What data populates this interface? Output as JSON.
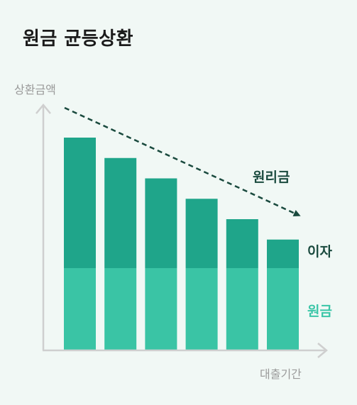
{
  "title": "원금 균등상환",
  "chart_data": {
    "type": "bar",
    "stacked": true,
    "title": "원금 균등상환",
    "xlabel": "대출기간",
    "ylabel": "상환금액",
    "categories": [
      "",
      "",
      "",
      "",
      "",
      ""
    ],
    "series": [
      {
        "name": "원금",
        "color": "#3ac4a5",
        "values": [
          40,
          40,
          40,
          40,
          40,
          40
        ]
      },
      {
        "name": "이자",
        "color": "#1fa58a",
        "values": [
          64,
          54,
          44,
          34,
          24,
          14
        ]
      }
    ],
    "trend_label": "원리금",
    "trend_color": "#1a4a3e",
    "ylim": [
      0,
      120
    ],
    "grid": false
  }
}
